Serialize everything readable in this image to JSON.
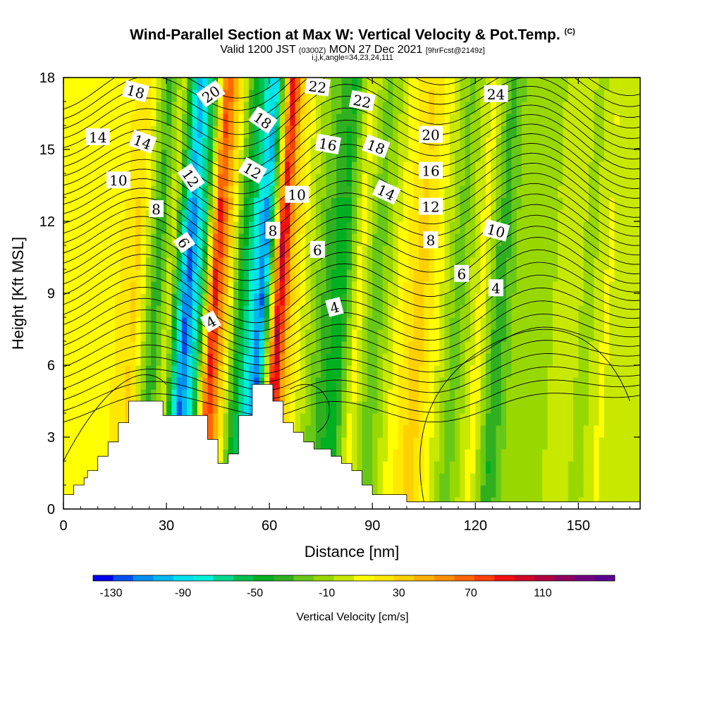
{
  "header": {
    "title": "Wind-Parallel Section at Max W: Vertical Velocity & Pot.Temp.",
    "copyright": "(C)",
    "valid_prefix": "Valid 1200 JST",
    "valid_utc": "(0300Z)",
    "valid_date": "MON 27 Dec 2021",
    "forecast_info": "[9hrFcst@2149z]",
    "indices": "i,j,k,angle=34,23,24,111"
  },
  "chart_data": {
    "type": "heatmap",
    "xlabel": "Distance [nm]",
    "ylabel": "Height [Kft MSL]",
    "xlim": [
      0,
      168
    ],
    "ylim": [
      0,
      18
    ],
    "x_ticks": [
      "0",
      "30",
      "60",
      "90",
      "120",
      "150"
    ],
    "y_ticks": [
      "0",
      "3",
      "6",
      "9",
      "12",
      "15",
      "18"
    ],
    "x_tick_values": [
      0,
      30,
      60,
      90,
      120,
      150
    ],
    "y_tick_values": [
      0,
      3,
      6,
      9,
      12,
      15,
      18
    ],
    "colorbar": {
      "title": "Vertical Velocity [cm/s]",
      "tick_labels": [
        "-130",
        "-90",
        "-50",
        "-10",
        "30",
        "70",
        "110"
      ],
      "tick_values": [
        -130,
        -90,
        -50,
        -10,
        30,
        70,
        110
      ],
      "range": [
        -140,
        150
      ],
      "colors": [
        "#0000f0",
        "#0050f0",
        "#0090f0",
        "#00b8f0",
        "#00e0f0",
        "#00f0d8",
        "#00d890",
        "#00c050",
        "#00b020",
        "#30b020",
        "#68c818",
        "#98d800",
        "#c8e800",
        "#ffff00",
        "#ffe800",
        "#ffd000",
        "#ffb000",
        "#ff9000",
        "#ff6800",
        "#ff4000",
        "#f01010",
        "#d00828",
        "#b00040",
        "#900060",
        "#700080",
        "#580090"
      ]
    },
    "vertical_velocity_bands": [
      {
        "x": 2,
        "w": 15
      },
      {
        "x": 9,
        "w": 6
      },
      {
        "x": 15,
        "w": 14
      },
      {
        "x": 21,
        "w": 30
      },
      {
        "x": 27,
        "w": -40
      },
      {
        "x": 31,
        "w": 5
      },
      {
        "x": 36,
        "w": -125
      },
      {
        "x": 40,
        "w": -60
      },
      {
        "x": 44,
        "w": 90
      },
      {
        "x": 48,
        "w": 25
      },
      {
        "x": 51,
        "w": -35
      },
      {
        "x": 55,
        "w": -80
      },
      {
        "x": 58,
        "w": -120
      },
      {
        "x": 63,
        "w": 110
      },
      {
        "x": 66,
        "w": 35
      },
      {
        "x": 70,
        "w": 5
      },
      {
        "x": 76,
        "w": -30
      },
      {
        "x": 81,
        "w": -50
      },
      {
        "x": 86,
        "w": 12
      },
      {
        "x": 91,
        "w": -28
      },
      {
        "x": 97,
        "w": 5
      },
      {
        "x": 104,
        "w": 35
      },
      {
        "x": 110,
        "w": 5
      },
      {
        "x": 115,
        "w": -25
      },
      {
        "x": 122,
        "w": 12
      },
      {
        "x": 127,
        "w": -40
      },
      {
        "x": 133,
        "w": -8
      },
      {
        "x": 140,
        "w": -15
      },
      {
        "x": 147,
        "w": 5
      },
      {
        "x": 153,
        "w": -12
      },
      {
        "x": 158,
        "w": 6
      },
      {
        "x": 164,
        "w": 2
      }
    ],
    "terrain": [
      [
        0,
        0.6
      ],
      [
        3,
        0.6
      ],
      [
        3,
        1.0
      ],
      [
        6,
        1.0
      ],
      [
        6,
        1.3
      ],
      [
        7,
        1.3
      ],
      [
        7,
        1.6
      ],
      [
        10,
        1.6
      ],
      [
        10,
        2.2
      ],
      [
        13,
        2.2
      ],
      [
        13,
        2.8
      ],
      [
        16,
        2.8
      ],
      [
        16,
        3.6
      ],
      [
        19,
        3.6
      ],
      [
        19,
        4.5
      ],
      [
        29,
        4.5
      ],
      [
        29,
        3.9
      ],
      [
        42,
        3.9
      ],
      [
        42,
        2.9
      ],
      [
        45,
        2.9
      ],
      [
        45,
        1.9
      ],
      [
        48,
        1.9
      ],
      [
        48,
        2.3
      ],
      [
        51,
        2.3
      ],
      [
        51,
        3.9
      ],
      [
        55,
        3.9
      ],
      [
        55,
        5.2
      ],
      [
        61,
        5.2
      ],
      [
        61,
        4.5
      ],
      [
        64,
        4.5
      ],
      [
        64,
        3.6
      ],
      [
        67,
        3.6
      ],
      [
        67,
        3.2
      ],
      [
        70,
        3.2
      ],
      [
        70,
        2.8
      ],
      [
        73,
        2.8
      ],
      [
        73,
        2.5
      ],
      [
        78,
        2.5
      ],
      [
        78,
        2.2
      ],
      [
        81,
        2.2
      ],
      [
        81,
        1.9
      ],
      [
        84,
        1.9
      ],
      [
        84,
        1.6
      ],
      [
        87,
        1.6
      ],
      [
        87,
        1.0
      ],
      [
        90,
        1.0
      ],
      [
        90,
        0.6
      ],
      [
        100,
        0.6
      ],
      [
        100,
        0.3
      ],
      [
        168,
        0.3
      ]
    ],
    "theta_contour_labels": [
      {
        "x": 21,
        "y": 17.4,
        "text": "18",
        "angle": 15
      },
      {
        "x": 43,
        "y": 17.3,
        "text": "20",
        "angle": -35
      },
      {
        "x": 74,
        "y": 17.6,
        "text": "22",
        "angle": 8
      },
      {
        "x": 87,
        "y": 17.0,
        "text": "22",
        "angle": 12
      },
      {
        "x": 126,
        "y": 17.3,
        "text": "24",
        "angle": 0
      },
      {
        "x": 10,
        "y": 15.5,
        "text": "14",
        "angle": 0
      },
      {
        "x": 23,
        "y": 15.3,
        "text": "14",
        "angle": 20
      },
      {
        "x": 58,
        "y": 16.2,
        "text": "18",
        "angle": 35
      },
      {
        "x": 77,
        "y": 15.2,
        "text": "16",
        "angle": 10
      },
      {
        "x": 91,
        "y": 15.1,
        "text": "18",
        "angle": 20
      },
      {
        "x": 107,
        "y": 15.6,
        "text": "20",
        "angle": 0
      },
      {
        "x": 16,
        "y": 13.7,
        "text": "10",
        "angle": 0
      },
      {
        "x": 37,
        "y": 13.8,
        "text": "12",
        "angle": 55
      },
      {
        "x": 55,
        "y": 14.1,
        "text": "12",
        "angle": 30
      },
      {
        "x": 107,
        "y": 14.1,
        "text": "16",
        "angle": 0
      },
      {
        "x": 27,
        "y": 12.5,
        "text": "8",
        "angle": 0
      },
      {
        "x": 68,
        "y": 13.1,
        "text": "10",
        "angle": 0
      },
      {
        "x": 94,
        "y": 13.2,
        "text": "14",
        "angle": 25
      },
      {
        "x": 107,
        "y": 12.6,
        "text": "12",
        "angle": 0
      },
      {
        "x": 35,
        "y": 11.1,
        "text": "6",
        "angle": 55
      },
      {
        "x": 61,
        "y": 11.6,
        "text": "8",
        "angle": 0
      },
      {
        "x": 107,
        "y": 11.2,
        "text": "8",
        "angle": 0
      },
      {
        "x": 126,
        "y": 11.6,
        "text": "10",
        "angle": 15
      },
      {
        "x": 74,
        "y": 10.8,
        "text": "6",
        "angle": 0
      },
      {
        "x": 116,
        "y": 9.8,
        "text": "6",
        "angle": 0
      },
      {
        "x": 126,
        "y": 9.2,
        "text": "4",
        "angle": 0
      },
      {
        "x": 43,
        "y": 7.8,
        "text": "4",
        "angle": -30
      },
      {
        "x": 79,
        "y": 8.4,
        "text": "4",
        "angle": -15
      }
    ]
  }
}
